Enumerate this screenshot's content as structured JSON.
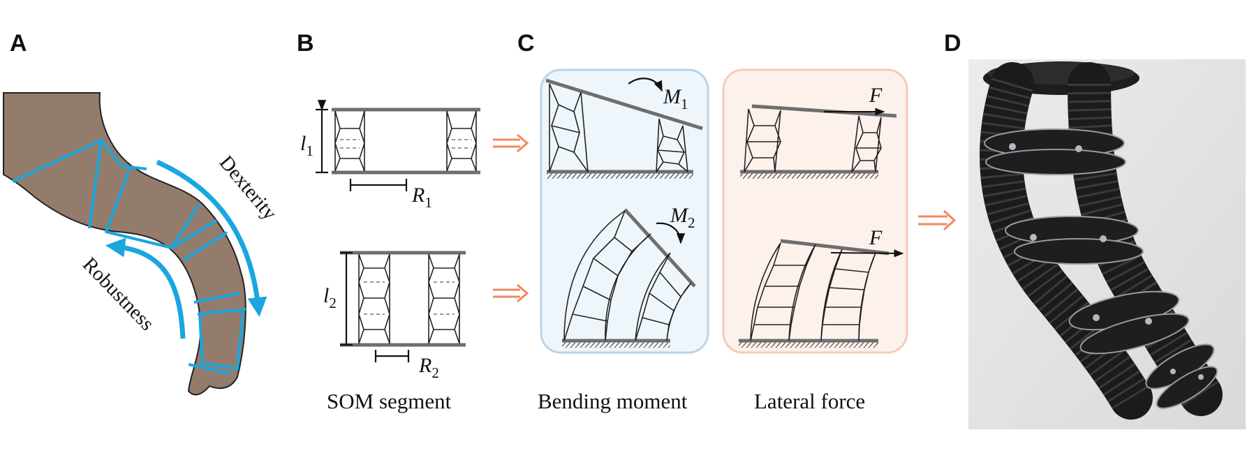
{
  "panels": [
    {
      "letter": "A"
    },
    {
      "letter": "B"
    },
    {
      "letter": "C"
    },
    {
      "letter": "D"
    }
  ],
  "panel_a": {
    "dexterity_label": "Dexterity",
    "robustness_label": "Robustness",
    "body_color": "#937c6c",
    "segment_line_color": "#1aa6df",
    "arrow_color": "#1aa6df"
  },
  "panel_b": {
    "segment1": {
      "length_symbol": "l",
      "length_sub": "1",
      "radius_symbol": "R",
      "radius_sub": "1"
    },
    "segment2": {
      "length_symbol": "l",
      "length_sub": "2",
      "radius_symbol": "R",
      "radius_sub": "2"
    },
    "caption": "SOM segment"
  },
  "panel_c": {
    "bending": {
      "caption": "Bending moment",
      "m1_symbol": "M",
      "m1_sub": "1",
      "m2_symbol": "M",
      "m2_sub": "2",
      "bg_color": "#eef6fc",
      "border_color": "#b9d4ea"
    },
    "lateral": {
      "caption": "Lateral force",
      "f_symbol": "F",
      "bg_color": "#fdf1ec",
      "border_color": "#f5cbb8"
    },
    "arrow_color": "#f08a5d"
  },
  "panel_d": {
    "photo_bg": "#e4e4e6",
    "tube_color": "#1b1b1c"
  }
}
